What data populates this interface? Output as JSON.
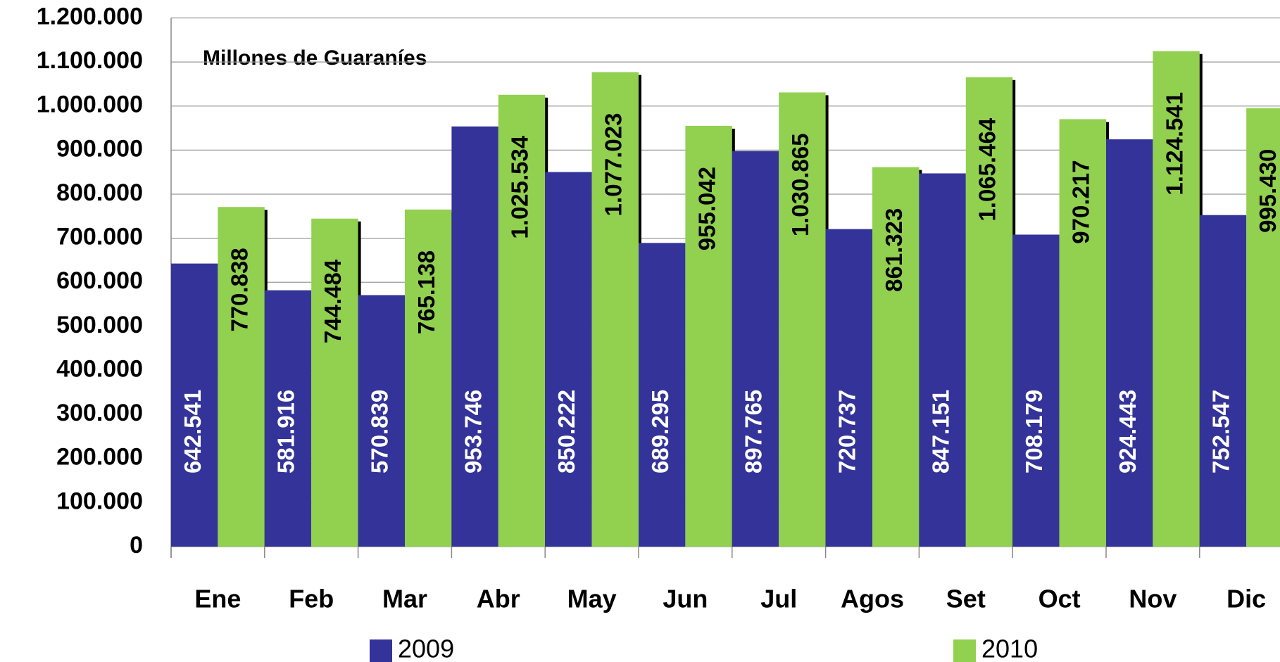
{
  "chart_data": {
    "type": "bar",
    "subtitle": "Millones de Guaraníes",
    "categories": [
      "Ene",
      "Feb",
      "Mar",
      "Abr",
      "May",
      "Jun",
      "Jul",
      "Agos",
      "Set",
      "Oct",
      "Nov",
      "Dic"
    ],
    "series": [
      {
        "name": "2009",
        "color": "#333399",
        "values": [
          642541,
          581916,
          570839,
          953746,
          850222,
          689295,
          897765,
          720737,
          847151,
          708179,
          924443,
          752547
        ],
        "value_labels": [
          "642.541",
          "581.916",
          "570.839",
          "953.746",
          "850.222",
          "689.295",
          "897.765",
          "720.737",
          "847.151",
          "708.179",
          "924.443",
          "752.547"
        ]
      },
      {
        "name": "2010",
        "color": "#92d050",
        "values": [
          770838,
          744484,
          765138,
          1025534,
          1077023,
          955042,
          1030865,
          861323,
          1065464,
          970217,
          1124541,
          995430
        ],
        "value_labels": [
          "770.838",
          "744.484",
          "765.138",
          "1.025.534",
          "1.077.023",
          "955.042",
          "1.030.865",
          "861.323",
          "1.065.464",
          "970.217",
          "1.124.541",
          "995.430"
        ]
      }
    ],
    "ylim": [
      0,
      1200000
    ],
    "yticks": [
      0,
      {
        "value": 100000,
        "label": "100.000"
      },
      {
        "value": 200000,
        "label": "200.000"
      },
      {
        "value": 300000,
        "label": "300.000"
      },
      {
        "value": 400000,
        "label": "400.000"
      },
      {
        "value": 500000,
        "label": "500.000"
      },
      {
        "value": 600000,
        "label": "600.000"
      },
      {
        "value": 700000,
        "label": "700.000"
      },
      {
        "value": 800000,
        "label": "800.000"
      },
      {
        "value": 900000,
        "label": "900.000"
      },
      {
        "value": 1000000,
        "label": "1.000.000"
      },
      {
        "value": 1100000,
        "label": "1.100.000"
      },
      {
        "value": 1200000,
        "label": "1.200.000"
      }
    ],
    "grid": true
  }
}
